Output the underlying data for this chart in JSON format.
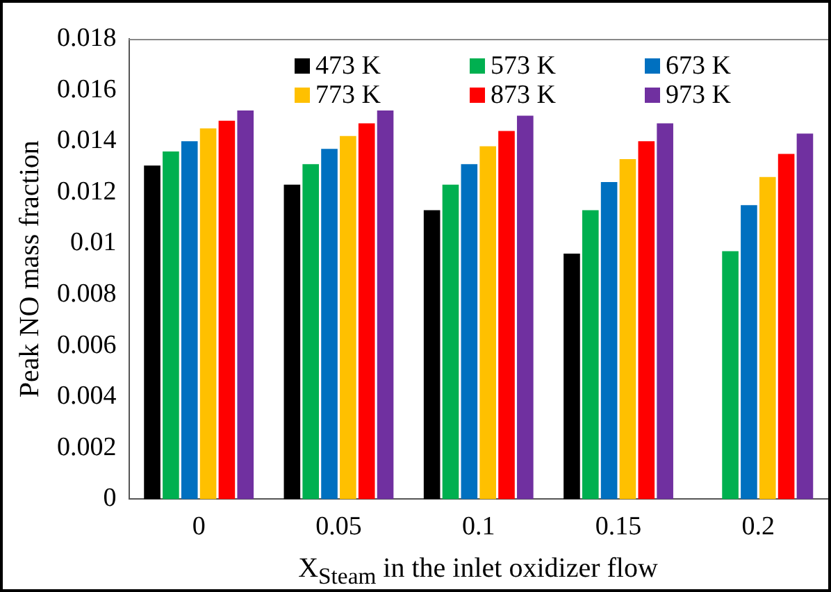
{
  "chart_data": {
    "type": "bar",
    "xlabel": "X$_{Steam}$ in the inlet oxidizer flow",
    "ylabel": "Peak NO mass fraction",
    "categories": [
      "0",
      "0.05",
      "0.1",
      "0.15",
      "0.2"
    ],
    "series": [
      {
        "name": "473 K",
        "color": "#000000",
        "values": [
          0.01305,
          0.0123,
          0.0113,
          0.0096,
          null
        ]
      },
      {
        "name": "573 K",
        "color": "#00b050",
        "values": [
          0.0136,
          0.0131,
          0.0123,
          0.0113,
          0.0097
        ]
      },
      {
        "name": "673 K",
        "color": "#0070c0",
        "values": [
          0.014,
          0.0137,
          0.0131,
          0.0124,
          0.0115
        ]
      },
      {
        "name": "773 K",
        "color": "#ffc000",
        "values": [
          0.0145,
          0.0142,
          0.0138,
          0.0133,
          0.0126
        ]
      },
      {
        "name": "873 K",
        "color": "#ff0000",
        "values": [
          0.0148,
          0.0147,
          0.0144,
          0.014,
          0.0135
        ]
      },
      {
        "name": "973 K",
        "color": "#7030a0",
        "values": [
          0.0152,
          0.0152,
          0.015,
          0.0147,
          0.0143
        ]
      }
    ],
    "ylim": [
      0,
      0.018
    ],
    "yticks": [
      0,
      0.002,
      0.004,
      0.006,
      0.008,
      0.01,
      0.012,
      0.014,
      0.016,
      0.018
    ],
    "grid": false,
    "legend": "top"
  }
}
